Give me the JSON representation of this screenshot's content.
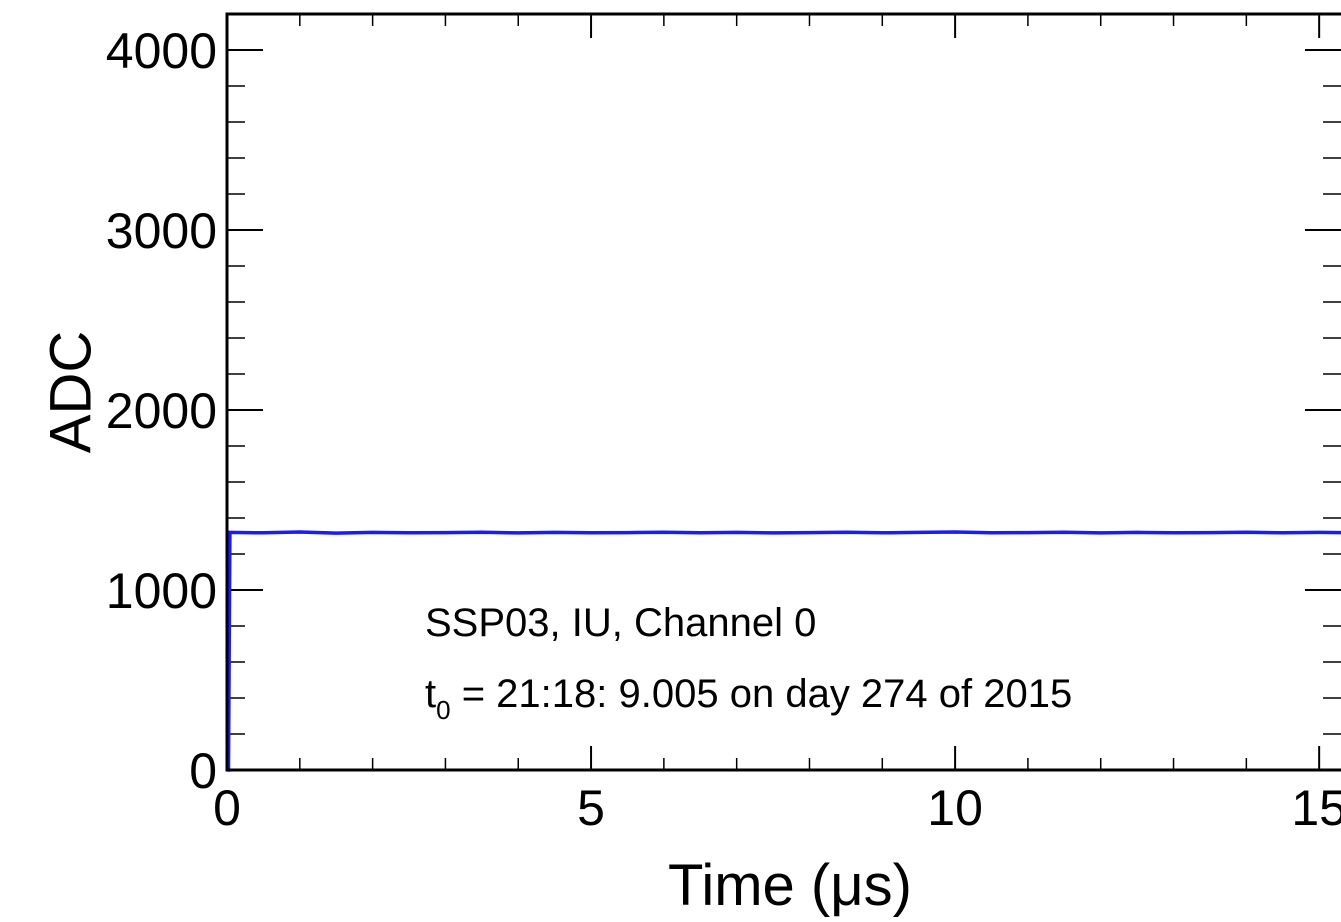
{
  "chart_data": {
    "type": "line",
    "title": "",
    "xlabel": "Time (μs)",
    "ylabel": "ADC",
    "xlim": [
      0,
      15.3
    ],
    "ylim": [
      0,
      4200
    ],
    "x_ticks": [
      0,
      5,
      10,
      15
    ],
    "x_tick_labels": [
      "0",
      "5",
      "10",
      "15"
    ],
    "y_ticks": [
      0,
      1000,
      2000,
      3000,
      4000
    ],
    "y_tick_labels": [
      "0",
      "1000",
      "2000",
      "3000",
      "4000"
    ],
    "x_minor_step": 1,
    "y_minor_step": 200,
    "grid": false,
    "series": [
      {
        "color": "#1a1aff",
        "x": [
          0,
          0.02,
          0.04,
          0.5,
          1,
          1.5,
          2,
          2.5,
          3,
          3.5,
          4,
          4.5,
          5,
          5.5,
          6,
          6.5,
          7,
          7.5,
          8,
          8.5,
          9,
          9.5,
          10,
          10.5,
          11,
          11.5,
          12,
          12.5,
          13,
          13.5,
          14,
          14.5,
          15,
          15.3
        ],
        "y": [
          0,
          0,
          1320,
          1318,
          1322,
          1316,
          1320,
          1318,
          1319,
          1321,
          1317,
          1320,
          1318,
          1319,
          1321,
          1318,
          1320,
          1317,
          1319,
          1321,
          1318,
          1320,
          1322,
          1318,
          1319,
          1321,
          1317,
          1320,
          1318,
          1319,
          1321,
          1318,
          1320,
          1319
        ]
      }
    ],
    "annotations": {
      "line1": "SSP03, IU, Channel 0",
      "line2_prefix": "t",
      "line2_sub": "0",
      "line2_rest": " = 21:18: 9.005 on day 274 of 2015"
    }
  }
}
